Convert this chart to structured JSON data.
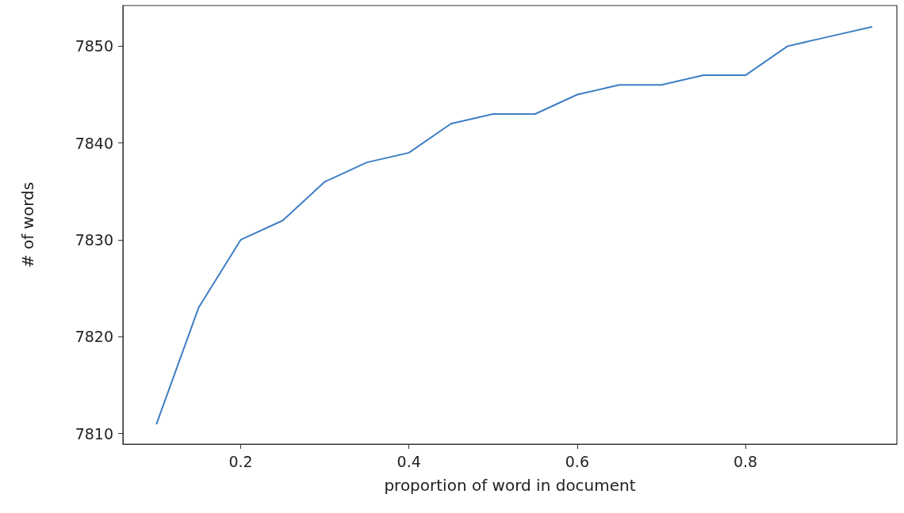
{
  "chart_data": {
    "type": "line",
    "xlabel": "proportion of word in document",
    "ylabel": "# of words",
    "x": [
      0.1,
      0.15,
      0.2,
      0.25,
      0.3,
      0.35,
      0.4,
      0.45,
      0.5,
      0.55,
      0.6,
      0.65,
      0.7,
      0.75,
      0.8,
      0.85,
      0.9,
      0.95
    ],
    "series": [
      {
        "color": "#3f7fc4",
        "values": [
          7811,
          7823,
          7830,
          7832,
          7836,
          7838,
          7839,
          7842,
          7843,
          7843,
          7845,
          7846,
          7846,
          7847,
          7847,
          7850,
          7851,
          7852
        ]
      }
    ],
    "xlim": [
      0.06,
      0.98
    ],
    "xticks": [
      0.2,
      0.4,
      0.6,
      0.8
    ],
    "ylim": [
      7808.9,
      7854.2
    ],
    "yticks": [
      7810,
      7820,
      7830,
      7840,
      7850
    ],
    "grid": false,
    "marker": "none",
    "line_style": "solid"
  }
}
